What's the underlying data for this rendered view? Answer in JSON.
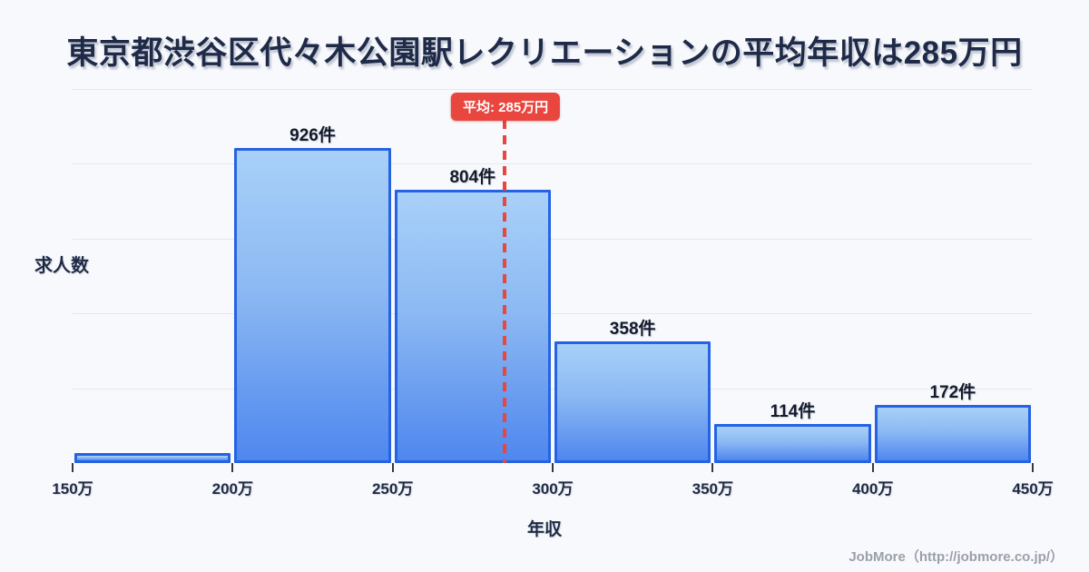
{
  "title": "東京都渋谷区代々木公園駅レクリエーションの平均年収は285万円",
  "chart_data": {
    "type": "bar",
    "subtype": "histogram",
    "title": "東京都渋谷区代々木公園駅レクリエーションの平均年収は285万円",
    "xlabel": "年収",
    "ylabel": "求人数",
    "x_tick_labels": [
      "150万",
      "200万",
      "250万",
      "300万",
      "350万",
      "400万",
      "450万"
    ],
    "bin_edges_manyen": [
      150,
      200,
      250,
      300,
      350,
      400,
      450
    ],
    "categories": [
      "150万-200万",
      "200万-250万",
      "250万-300万",
      "300万-350万",
      "350万-400万",
      "400万-450万"
    ],
    "values": [
      29,
      926,
      804,
      358,
      114,
      172
    ],
    "bar_labels": [
      "",
      "926件",
      "804件",
      "358件",
      "114件",
      "172件"
    ],
    "ylim": [
      0,
      1100
    ],
    "xlim_manyen": [
      150,
      450
    ],
    "grid": "horizontal",
    "gridline_intervals": 5,
    "average_line": {
      "value_manyen": 285,
      "badge_label": "平均: 285万円"
    },
    "colors": {
      "background": "#f8f9fc",
      "bar_fill_top": "#a8d0f8",
      "bar_fill_bottom": "#4f87ee",
      "bar_border": "#2563e4",
      "gridline": "#e4e8f0",
      "average_red": "#e8463f",
      "title_text": "#1e2a47",
      "axis_text": "#1f2b45",
      "footer_text": "#9aa0aa"
    }
  },
  "footer": {
    "credit": "JobMore（http://jobmore.co.jp/）"
  }
}
